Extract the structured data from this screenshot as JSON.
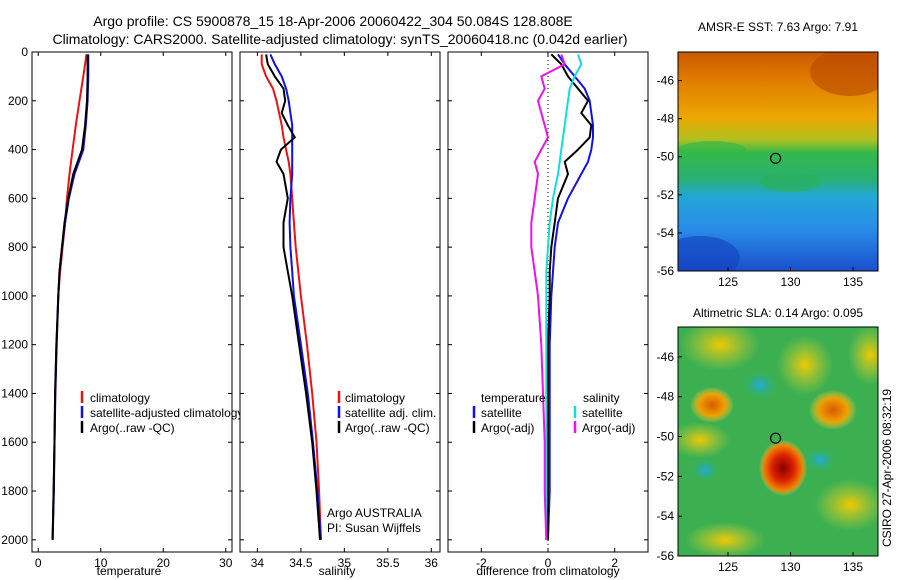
{
  "header": {
    "line1": "Argo profile: CS 5900878_15 18-Apr-2006 20060422_304 50.084S 128.808E",
    "line2": "Climatology: CARS2000. Satellite-adjusted climatology: synTS_20060418.nc (0.042d earlier)"
  },
  "footer_stamp": "CSIRO 27-Apr-2006 08:32:19",
  "colors": {
    "red": "#ee1111",
    "blue": "#1010ee",
    "black": "#000000",
    "cyan": "#11dddd",
    "magenta": "#ee11ee"
  },
  "chart_data": [
    {
      "type": "line",
      "panel": "temperature",
      "xlabel": "temperature",
      "xlim": [
        -1,
        31
      ],
      "ylim": [
        2050,
        0
      ],
      "xticks": [
        0,
        10,
        20,
        30
      ],
      "yticks": [
        0,
        200,
        400,
        600,
        800,
        1000,
        1200,
        1400,
        1600,
        1800,
        2000
      ],
      "depth": [
        10,
        50,
        100,
        200,
        300,
        400,
        500,
        600,
        700,
        800,
        900,
        1000,
        1200,
        1400,
        1600,
        1800,
        2000
      ],
      "series": [
        {
          "name": "climatology",
          "color": "red",
          "values": [
            7.7,
            7.5,
            7.2,
            6.6,
            6.0,
            5.5,
            5.0,
            4.6,
            4.3,
            3.9,
            3.5,
            3.2,
            2.9,
            2.7,
            2.6,
            2.45,
            2.3
          ]
        },
        {
          "name": "satellite-adjusted climatology",
          "color": "blue",
          "values": [
            8.0,
            8.0,
            8.0,
            7.9,
            7.6,
            7.2,
            5.8,
            4.9,
            4.3,
            3.8,
            3.4,
            3.2,
            2.95,
            2.75,
            2.6,
            2.5,
            2.3
          ]
        },
        {
          "name": "Argo(..raw -QC)",
          "color": "black",
          "values": [
            7.9,
            7.9,
            7.9,
            7.8,
            7.5,
            7.0,
            5.6,
            4.8,
            4.2,
            3.8,
            3.4,
            3.2,
            2.9,
            2.7,
            2.6,
            2.45,
            2.3
          ]
        }
      ],
      "legend": [
        "climatology",
        "satellite-adjusted climatology",
        "Argo(..raw -QC)"
      ]
    },
    {
      "type": "line",
      "panel": "salinity",
      "xlabel": "salinity",
      "xlim": [
        33.8,
        36.1
      ],
      "ylim": [
        2050,
        0
      ],
      "xticks": [
        34,
        34.5,
        35,
        35.5,
        36
      ],
      "xticklabels": [
        "34",
        "34.5",
        "35",
        "35.5",
        "36"
      ],
      "depth": [
        10,
        50,
        100,
        150,
        200,
        250,
        300,
        350,
        400,
        450,
        500,
        600,
        700,
        800,
        900,
        1000,
        1200,
        1400,
        1600,
        1800,
        2000
      ],
      "series": [
        {
          "name": "climatology",
          "color": "red",
          "values": [
            34.05,
            34.05,
            34.1,
            34.18,
            34.22,
            34.25,
            34.28,
            34.3,
            34.33,
            34.36,
            34.38,
            34.4,
            34.42,
            34.44,
            34.47,
            34.5,
            34.57,
            34.63,
            34.68,
            34.71,
            34.73
          ]
        },
        {
          "name": "satellite adj. clim.",
          "color": "blue",
          "values": [
            34.15,
            34.2,
            34.28,
            34.33,
            34.36,
            34.38,
            34.4,
            34.4,
            34.4,
            34.4,
            34.4,
            34.38,
            34.37,
            34.38,
            34.4,
            34.42,
            34.5,
            34.58,
            34.64,
            34.69,
            34.73
          ]
        },
        {
          "name": "Argo(..raw -QC)",
          "color": "black",
          "values": [
            34.1,
            34.12,
            34.2,
            34.3,
            34.32,
            34.28,
            34.35,
            34.43,
            34.27,
            34.22,
            34.3,
            34.35,
            34.3,
            34.3,
            34.35,
            34.4,
            34.48,
            34.56,
            34.63,
            34.68,
            34.72
          ]
        }
      ],
      "legend": [
        "climatology",
        "satellite adj. clim.",
        "Argo(..raw -QC)"
      ],
      "annotation": [
        "Argo AUSTRALIA",
        "PI: Susan Wijffels"
      ]
    },
    {
      "type": "line",
      "panel": "difference",
      "xlabel": "difference from climatology",
      "xlim": [
        -3,
        3
      ],
      "ylim": [
        2050,
        0
      ],
      "xticks": [
        -2,
        0,
        2
      ],
      "depth": [
        10,
        50,
        100,
        150,
        200,
        250,
        300,
        350,
        400,
        450,
        500,
        600,
        700,
        800,
        900,
        1000,
        1200,
        1400,
        1600,
        1800,
        2000
      ],
      "series": [
        {
          "name": "temperature satellite",
          "color": "blue",
          "values": [
            0.3,
            0.5,
            0.8,
            1.1,
            1.25,
            1.3,
            1.35,
            1.35,
            1.3,
            1.2,
            1.0,
            0.6,
            0.3,
            0.2,
            0.15,
            0.1,
            0.05,
            0.05,
            0.05,
            0.05,
            0.0
          ]
        },
        {
          "name": "temperature Argo(-adj)",
          "color": "black",
          "values": [
            0.1,
            0.4,
            0.6,
            0.9,
            1.2,
            1.0,
            1.3,
            1.25,
            0.9,
            0.5,
            0.6,
            0.3,
            0.2,
            0.1,
            0.05,
            0.05,
            0.0,
            0.0,
            0.0,
            0.0,
            0.0
          ]
        },
        {
          "name": "salinity satellite",
          "color": "cyan",
          "values": [
            0.9,
            1.0,
            0.8,
            0.65,
            0.6,
            0.55,
            0.5,
            0.45,
            0.4,
            0.35,
            0.3,
            0.15,
            0.05,
            0.0,
            -0.05,
            -0.05,
            -0.05,
            -0.05,
            -0.05,
            -0.05,
            -0.05
          ]
        },
        {
          "name": "salinity Argo(-adj)",
          "color": "magenta",
          "values": [
            0.4,
            0.5,
            -0.2,
            -0.1,
            -0.3,
            -0.2,
            -0.1,
            0.0,
            -0.2,
            -0.4,
            -0.3,
            -0.4,
            -0.5,
            -0.5,
            -0.4,
            -0.3,
            -0.2,
            -0.15,
            -0.1,
            -0.1,
            -0.05
          ]
        }
      ],
      "legend_headers": [
        "temperature",
        "salinity"
      ],
      "legend": [
        "satellite",
        "Argo(-adj)",
        "satellite",
        "Argo(-adj)"
      ]
    },
    {
      "type": "heatmap",
      "panel": "sst_map",
      "title": "AMSR-E SST: 7.63  Argo: 7.91",
      "xlim": [
        121,
        137
      ],
      "ylim": [
        -56,
        -44.5
      ],
      "xticks": [
        125,
        130,
        135
      ],
      "yticks": [
        -46,
        -48,
        -50,
        -52,
        -54,
        -56
      ],
      "marker": {
        "lon": 128.808,
        "lat": -50.084
      }
    },
    {
      "type": "heatmap",
      "panel": "sla_map",
      "title": "Altimetric SLA: 0.14  Argo: 0.095",
      "xlim": [
        121,
        137
      ],
      "ylim": [
        -56,
        -44.5
      ],
      "xticks": [
        125,
        130,
        135
      ],
      "yticks": [
        -46,
        -48,
        -50,
        -52,
        -54,
        -56
      ],
      "marker": {
        "lon": 128.808,
        "lat": -50.084
      }
    }
  ]
}
